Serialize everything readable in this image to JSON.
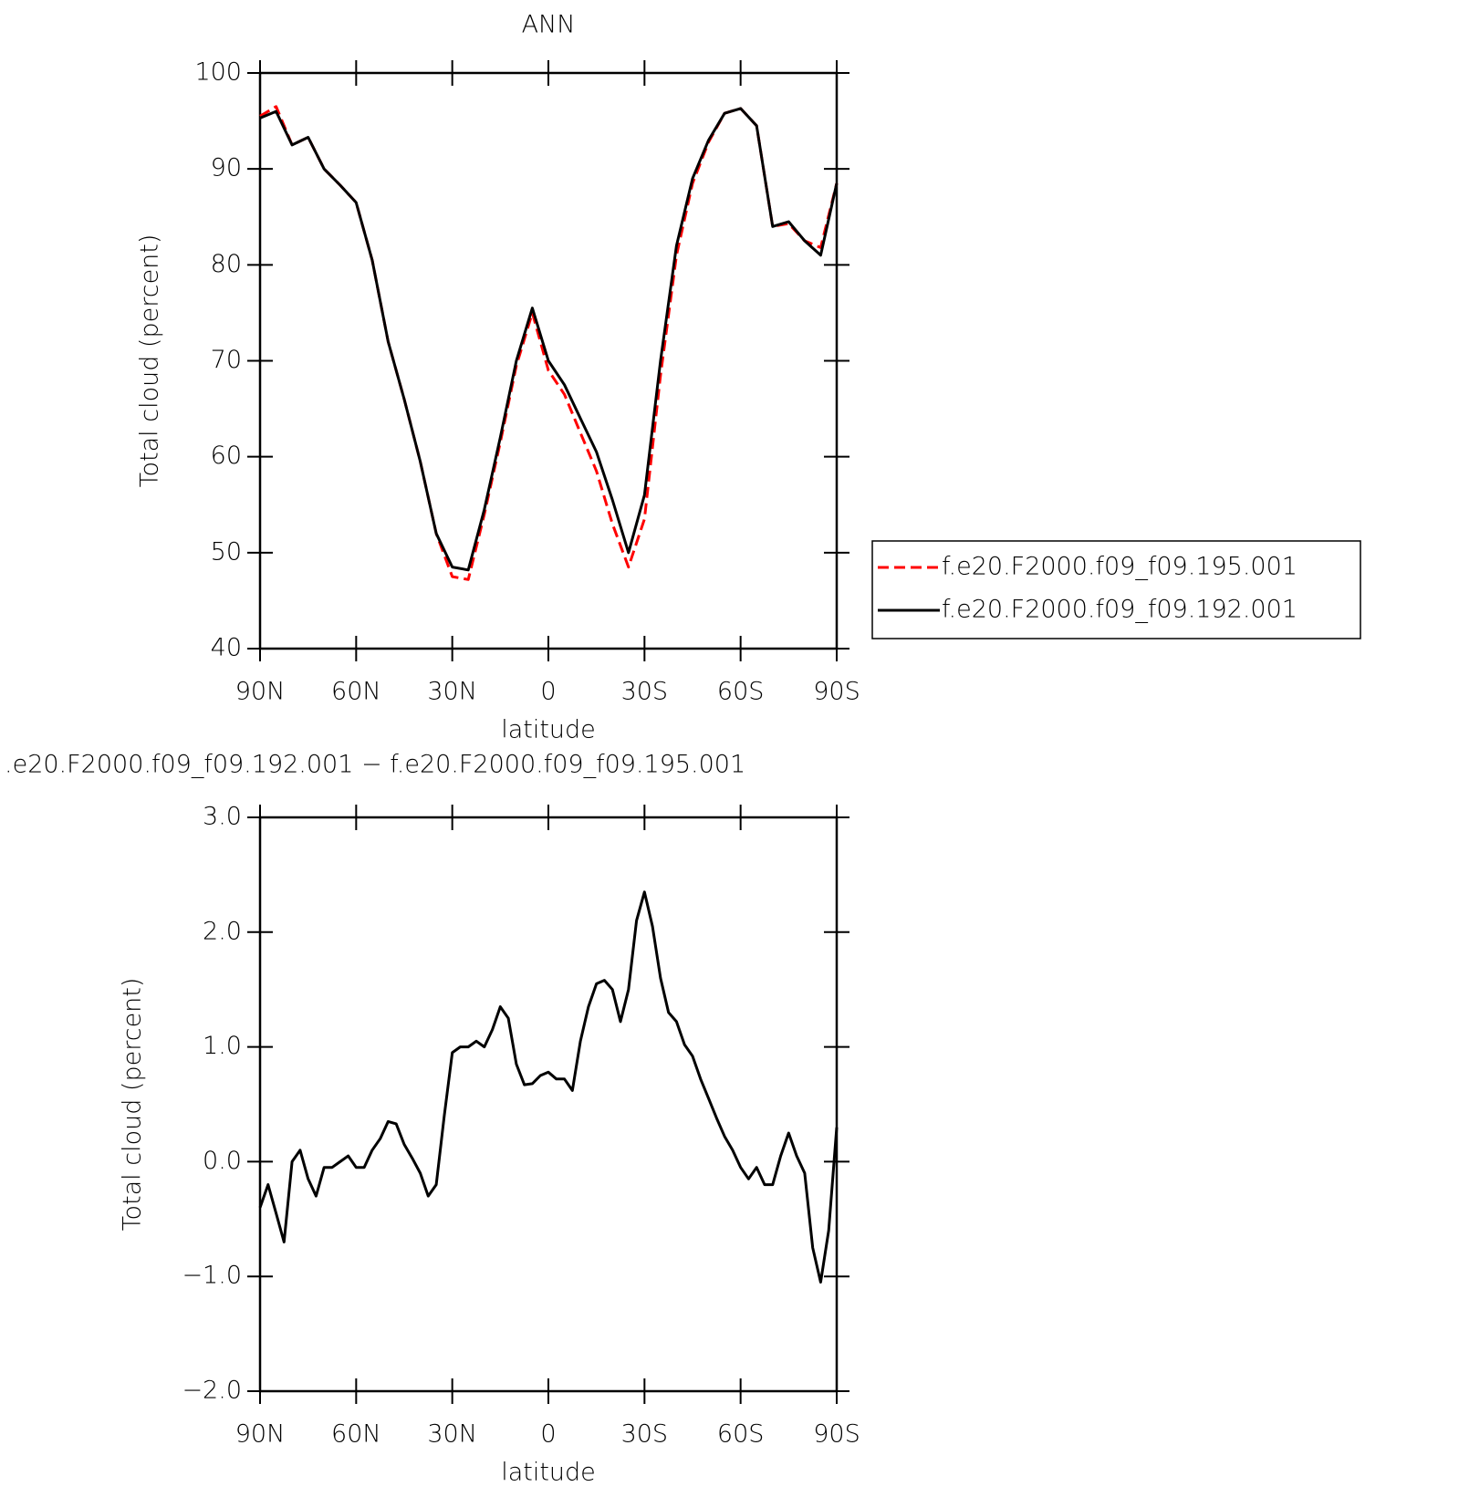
{
  "chart_data": [
    {
      "type": "line",
      "title": "ANN",
      "xlabel": "latitude",
      "ylabel": "Total cloud (percent)",
      "x": [
        90,
        85,
        80,
        75,
        70,
        65,
        60,
        55,
        50,
        45,
        40,
        35,
        30,
        25,
        20,
        15,
        10,
        5,
        0,
        -5,
        -10,
        -15,
        -20,
        -25,
        -30,
        -35,
        -40,
        -45,
        -50,
        -55,
        -60,
        -65,
        -70,
        -75,
        -80,
        -85,
        -90
      ],
      "series": [
        {
          "name": "f.e20.F2000.f09_f09.195.001",
          "color": "#ff0000",
          "dash": true,
          "values": [
            95.5,
            96.5,
            92.5,
            93.3,
            90,
            88.3,
            86.5,
            80.5,
            72,
            66,
            59.5,
            52,
            47.5,
            47.2,
            54,
            61.5,
            69.5,
            75,
            69,
            66.5,
            62.5,
            58.5,
            53,
            48.5,
            53.5,
            68.5,
            81,
            88.5,
            92.8,
            95.8,
            96.3,
            94.5,
            84,
            84.3,
            82.5,
            81.8,
            88.5
          ]
        },
        {
          "name": "f.e20.F2000.f09_f09.192.001",
          "color": "#000000",
          "dash": false,
          "values": [
            95.3,
            96,
            92.5,
            93.3,
            90,
            88.3,
            86.5,
            80.5,
            72,
            66,
            59.5,
            52,
            48.5,
            48.2,
            54.5,
            62,
            70,
            75.5,
            70,
            67.5,
            64,
            60.5,
            55.5,
            50,
            56,
            70,
            82,
            89,
            93,
            95.8,
            96.3,
            94.5,
            84,
            84.5,
            82.5,
            81,
            88.5
          ]
        }
      ],
      "xlim": [
        90,
        -90
      ],
      "xticks": [
        {
          "value": 90,
          "label": "90N"
        },
        {
          "value": 60,
          "label": "60N"
        },
        {
          "value": 30,
          "label": "30N"
        },
        0,
        {
          "value": -30,
          "label": "30S"
        },
        {
          "value": -60,
          "label": "60S"
        },
        {
          "value": -90,
          "label": "90S"
        }
      ],
      "ylim": [
        40,
        100
      ],
      "yticks": [
        40,
        50,
        60,
        70,
        80,
        90,
        100
      ],
      "legend": "right"
    },
    {
      "type": "line",
      "title": ".e20.F2000.f09_f09.192.001 − f.e20.F2000.f09_f09.195.001",
      "xlabel": "latitude",
      "ylabel": "Total cloud (percent)",
      "x": [
        90,
        87.5,
        85,
        82.5,
        80,
        77.5,
        75,
        72.5,
        70,
        67.5,
        65,
        62.5,
        60,
        57.5,
        55,
        52.5,
        50,
        47.5,
        45,
        42.5,
        40,
        37.5,
        35,
        32.5,
        30,
        27.5,
        25,
        22.5,
        20,
        17.5,
        15,
        12.5,
        10,
        7.5,
        5,
        2.5,
        0,
        -2.5,
        -5,
        -7.5,
        -10,
        -12.5,
        -15,
        -17.5,
        -20,
        -22.5,
        -25,
        -27.5,
        -30,
        -32.5,
        -35,
        -37.5,
        -40,
        -42.5,
        -45,
        -47.5,
        -50,
        -52.5,
        -55,
        -57.5,
        -60,
        -62.5,
        -65,
        -67.5,
        -70,
        -72.5,
        -75,
        -77.5,
        -80,
        -82.5,
        -85,
        -87.5,
        -90
      ],
      "series": [
        {
          "color": "#000000",
          "dash": false,
          "values": [
            -0.4,
            -0.2,
            -0.45,
            -0.7,
            0,
            0.1,
            -0.15,
            -0.3,
            -0.05,
            -0.05,
            0,
            0.05,
            -0.05,
            -0.05,
            0.1,
            0.2,
            0.35,
            0.33,
            0.15,
            0.03,
            -0.1,
            -0.3,
            -0.2,
            0.4,
            0.95,
            1,
            1,
            1.05,
            1,
            1.15,
            1.35,
            1.25,
            0.85,
            0.67,
            0.68,
            0.75,
            0.78,
            0.72,
            0.72,
            0.62,
            1.05,
            1.35,
            1.55,
            1.58,
            1.5,
            1.22,
            1.5,
            2.1,
            2.35,
            2.05,
            1.6,
            1.3,
            1.22,
            1.02,
            0.92,
            0.72,
            0.55,
            0.38,
            0.22,
            0.1,
            -0.05,
            -0.15,
            -0.05,
            -0.2,
            -0.2,
            0.05,
            0.25,
            0.05,
            -0.1,
            -0.75,
            -1.05,
            -0.6,
            0.3
          ]
        }
      ],
      "xlim": [
        90,
        -90
      ],
      "xticks": [
        {
          "value": 90,
          "label": "90N"
        },
        {
          "value": 60,
          "label": "60N"
        },
        {
          "value": 30,
          "label": "30N"
        },
        0,
        {
          "value": -30,
          "label": "30S"
        },
        {
          "value": -60,
          "label": "60S"
        },
        {
          "value": -90,
          "label": "90S"
        }
      ],
      "ylim": [
        -2,
        3
      ],
      "yticks": [
        {
          "value": -2,
          "label": "−2.0"
        },
        {
          "value": -1,
          "label": "−1.0"
        },
        {
          "value": 0,
          "label": "0.0"
        },
        {
          "value": 1,
          "label": "1.0"
        },
        {
          "value": 2,
          "label": "2.0"
        },
        {
          "value": 3,
          "label": "3.0"
        }
      ]
    }
  ]
}
